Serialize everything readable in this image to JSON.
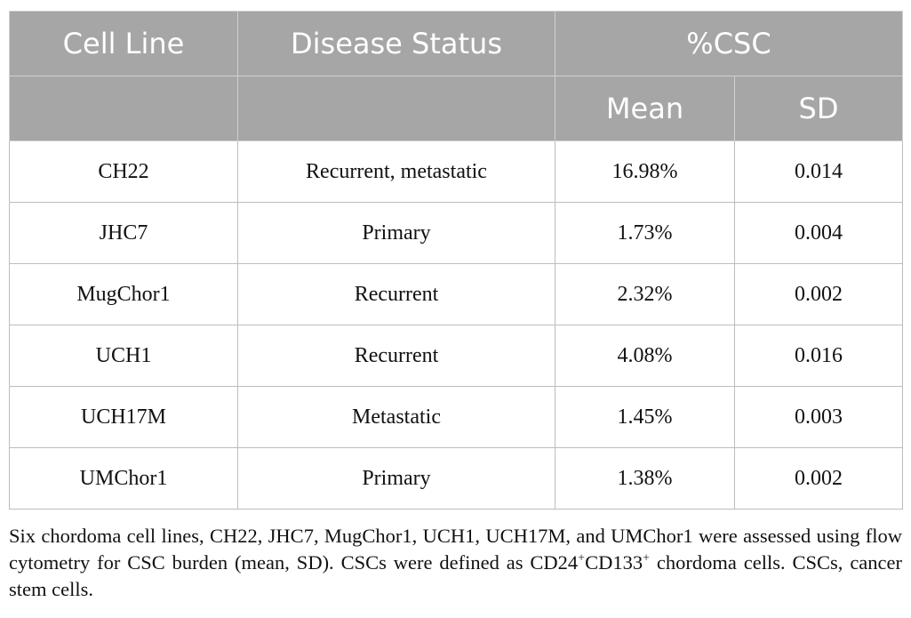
{
  "table": {
    "header": [
      [
        "Cell Line",
        "Disease Status",
        "%CSC"
      ],
      [
        "Mean",
        "SD"
      ]
    ],
    "rows": [
      [
        "CH22",
        "Recurrent, metastatic",
        "16.98%",
        "0.014"
      ],
      [
        "JHC7",
        "Primary",
        "1.73%",
        "0.004"
      ],
      [
        "MugChor1",
        "Recurrent",
        "2.32%",
        "0.002"
      ],
      [
        "UCH1",
        "Recurrent",
        "4.08%",
        "0.016"
      ],
      [
        "UCH17M",
        "Metastatic",
        "1.45%",
        "0.003"
      ],
      [
        "UMChor1",
        "Primary",
        "1.38%",
        "0.002"
      ]
    ]
  },
  "caption": [
    "Six chordoma cell lines, CH22, JHC7, MugChor1, UCH1, UCH17M, and UMChor1 were assessed using flow cytometry for CSC burden (mean, SD). CSCs were defined as CD24",
    "+",
    "CD133",
    "+",
    " chordoma cells. CSCs, cancer stem cells."
  ]
}
